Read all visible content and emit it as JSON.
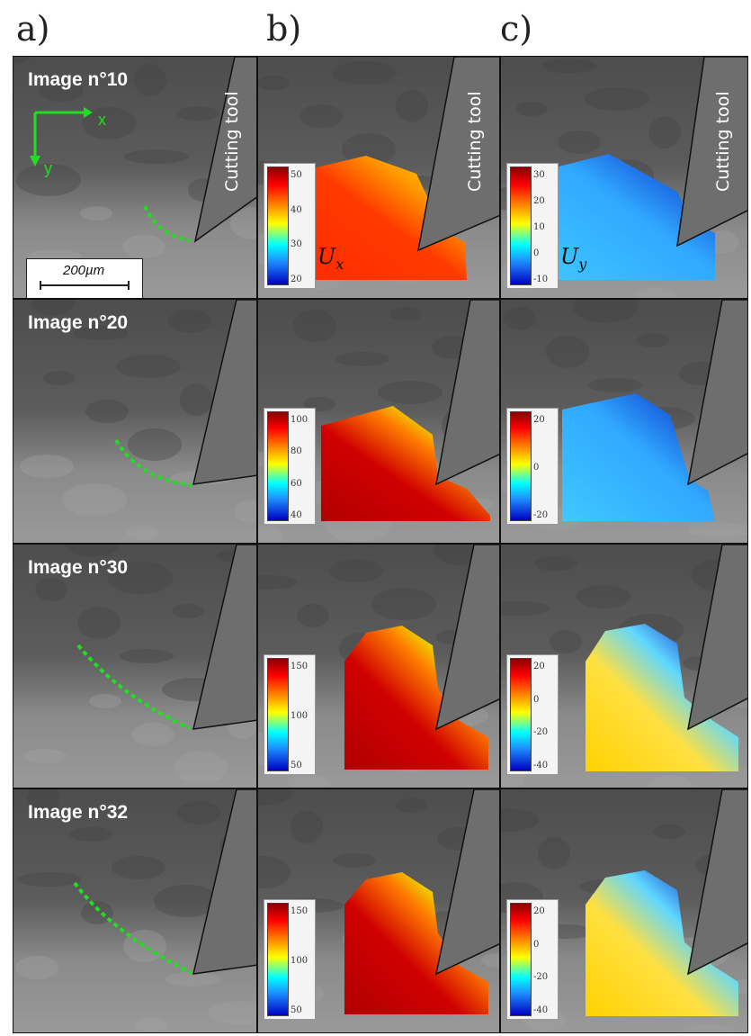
{
  "column_labels": [
    "a)",
    "b)",
    "c)"
  ],
  "rows": [
    {
      "image_label": "Image n°10"
    },
    {
      "image_label": "Image n°20"
    },
    {
      "image_label": "Image n°30"
    },
    {
      "image_label": "Image n°32"
    }
  ],
  "tool_label": "Cutting tool",
  "axes": {
    "x": "x",
    "y": "y"
  },
  "scale_bar": "200µm",
  "ux_label": "U",
  "ux_sub": "x",
  "uy_label": "U",
  "uy_sub": "y",
  "colorbars": {
    "ux": [
      [
        "50",
        "40",
        "30",
        "20"
      ],
      [
        "100",
        "80",
        "60",
        "40"
      ],
      [
        "150",
        "100",
        "50"
      ],
      [
        "150",
        "100",
        "50"
      ]
    ],
    "uy": [
      [
        "30",
        "20",
        "10",
        "0",
        "-10"
      ],
      [
        "20",
        "0",
        "-20"
      ],
      [
        "20",
        "0",
        "-20",
        "-40"
      ],
      [
        "20",
        "0",
        "-20",
        "-40"
      ]
    ]
  },
  "colors": {
    "chip_green": "#22dd22",
    "tool_gray": "#6e6e6e"
  }
}
